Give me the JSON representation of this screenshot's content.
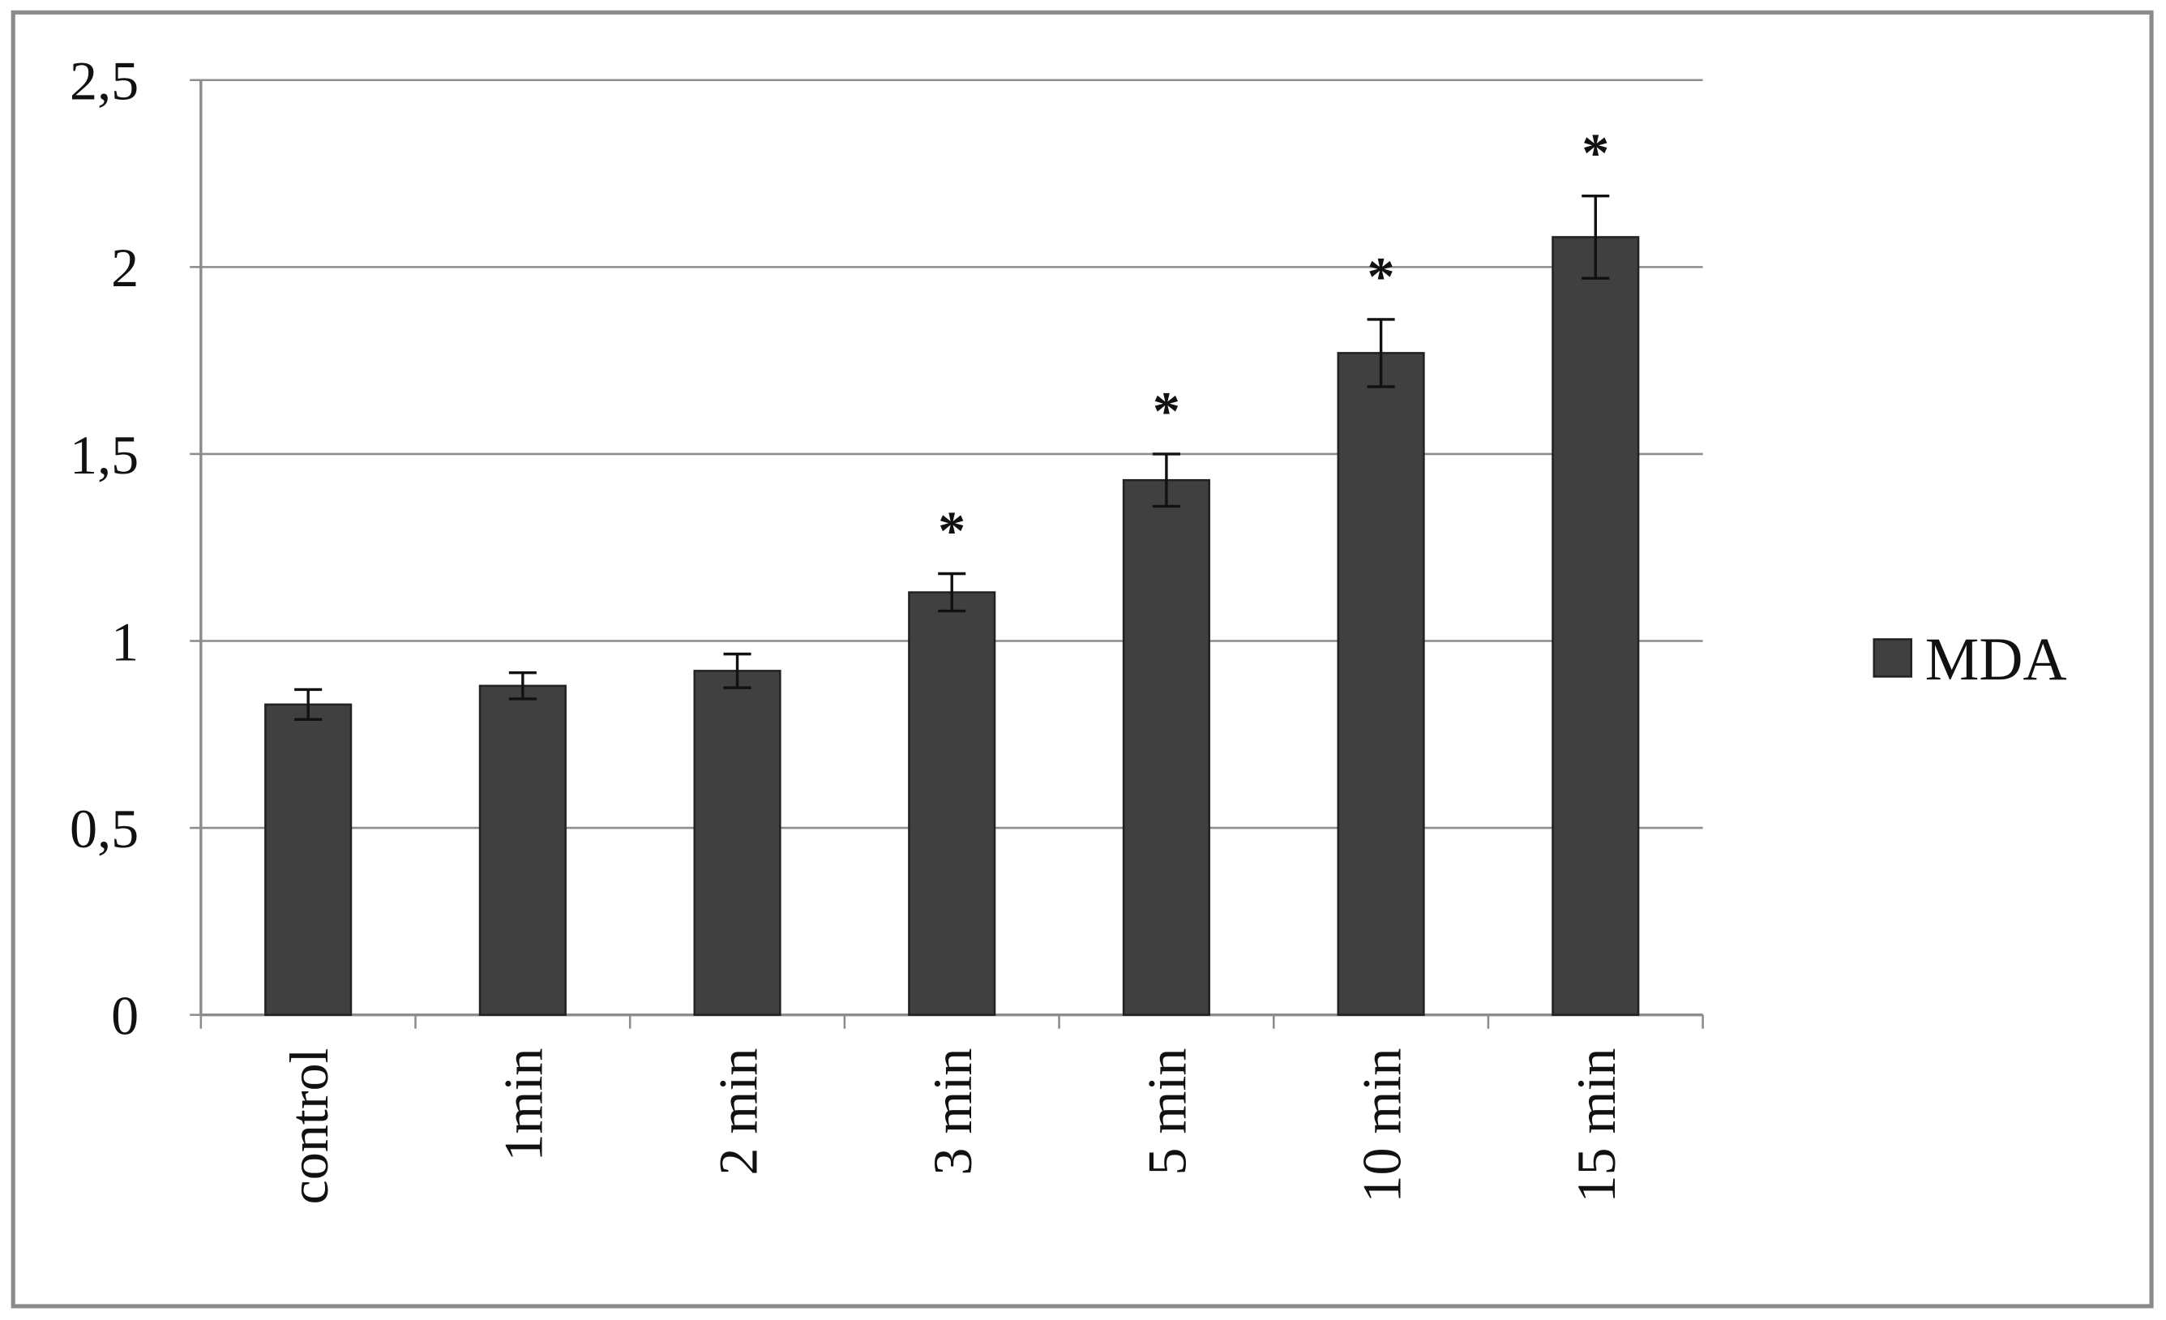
{
  "chart_data": {
    "type": "bar",
    "categories": [
      "control",
      "1min",
      "2 min",
      "3 min",
      "5 min",
      "10 min",
      "15 min"
    ],
    "series": [
      {
        "name": "MDA",
        "color": "#404040",
        "values": [
          0.83,
          0.88,
          0.92,
          1.13,
          1.43,
          1.77,
          2.08
        ],
        "errors": [
          0.04,
          0.035,
          0.045,
          0.05,
          0.07,
          0.09,
          0.11
        ]
      }
    ],
    "annotations": [
      null,
      null,
      null,
      "*",
      "*",
      "*",
      "*"
    ],
    "ylim": [
      0,
      2.5
    ],
    "yticks": [
      0,
      {
        "value": 0.5,
        "label": "0,5"
      },
      1,
      {
        "value": 1.5,
        "label": "1,5"
      },
      2,
      {
        "value": 2.5,
        "label": "2,5"
      }
    ],
    "grid": true,
    "legend": "right"
  }
}
